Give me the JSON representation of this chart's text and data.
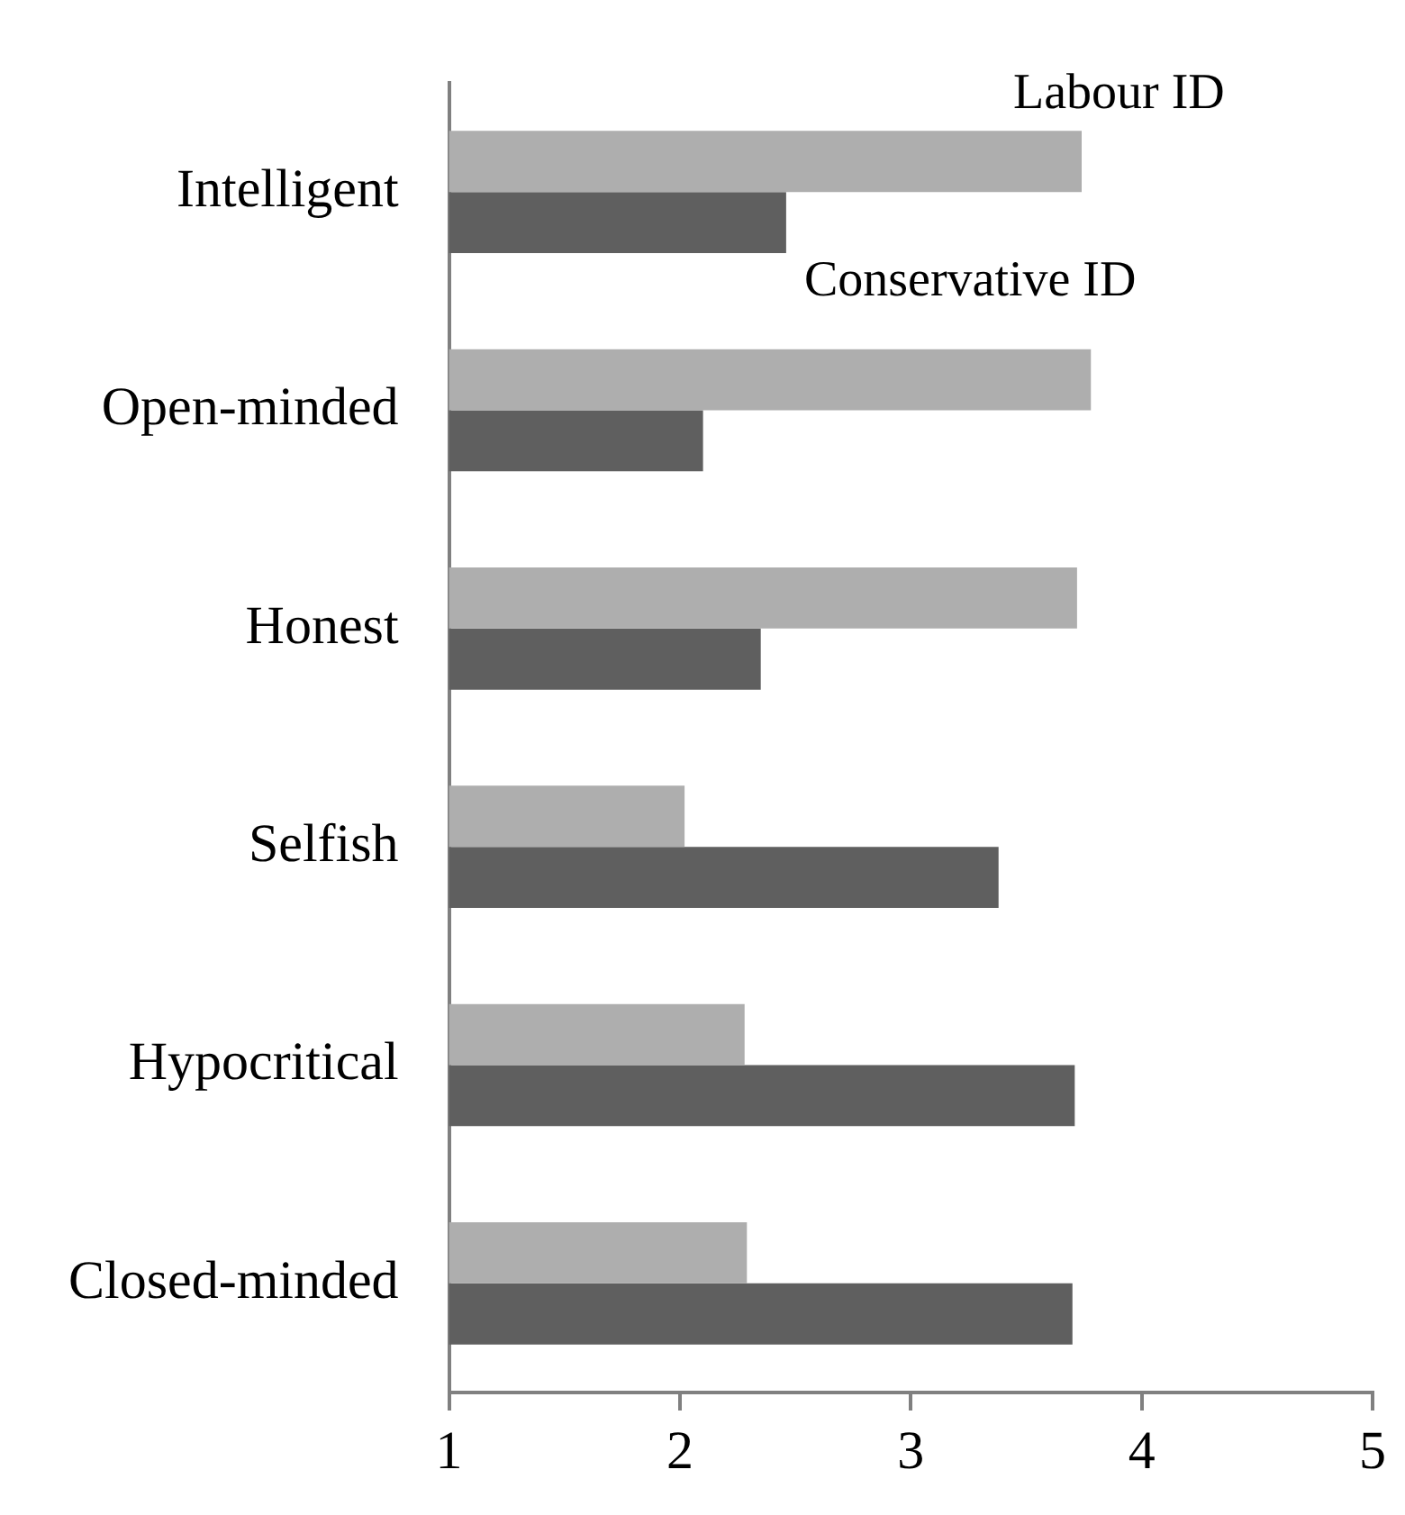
{
  "chart_data": {
    "type": "bar",
    "orientation": "horizontal",
    "categories": [
      "Intelligent",
      "Open-minded",
      "Honest",
      "Selfish",
      "Hypocritical",
      "Closed-minded"
    ],
    "series": [
      {
        "name": "Labour ID",
        "color": "#aeaeae",
        "values": [
          3.74,
          3.78,
          3.72,
          2.02,
          2.28,
          2.29
        ]
      },
      {
        "name": "Conservative ID",
        "color": "#5f5f5f",
        "values": [
          2.46,
          2.1,
          2.35,
          3.38,
          3.71,
          3.7
        ]
      }
    ],
    "xlim": [
      1,
      5
    ],
    "xticks": [
      1,
      2,
      3,
      4,
      5
    ],
    "grid": false,
    "legend": false
  }
}
